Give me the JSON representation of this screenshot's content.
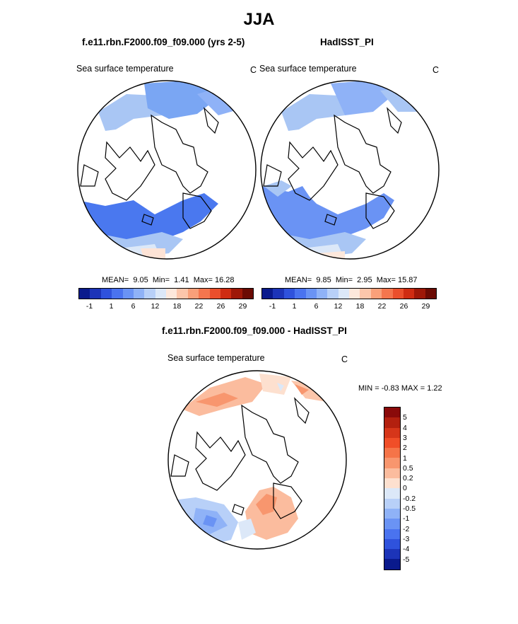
{
  "title": "JJA",
  "left_panel": {
    "header": "f.e11.rbn.F2000.f09_f09.000 (yrs 2-5)",
    "label": "Sea surface temperature",
    "units": "C",
    "stats": {
      "mean_label": "MEAN=",
      "mean": "9.05",
      "min_label": "Min=",
      "min": "1.41",
      "max_label": "Max=",
      "max": "16.28"
    }
  },
  "right_panel": {
    "header": "HadISST_PI",
    "label": "Sea surface temperature",
    "units": "C",
    "stats": {
      "mean_label": "MEAN=",
      "mean": "9.85",
      "min_label": "Min=",
      "min": "2.95",
      "max_label": "Max=",
      "max": "15.87"
    }
  },
  "diff_panel": {
    "header": "f.e11.rbn.F2000.f09_f09.000 - HadISST_PI",
    "label": "Sea surface temperature",
    "units": "C",
    "minmax": "MIN =  -0.83 MAX =  1.22"
  },
  "abs_colorbar": {
    "tick_labels": [
      "-1",
      "1",
      "6",
      "12",
      "18",
      "22",
      "26",
      "29"
    ],
    "colors": [
      "#0a1a8c",
      "#1c34b8",
      "#2f52dc",
      "#4a73ef",
      "#6a93f4",
      "#8fb2f7",
      "#b8d0f8",
      "#dce8f8",
      "#fde8dc",
      "#fcc6ab",
      "#f9a07a",
      "#f4764e",
      "#ea4f2c",
      "#cf2c12",
      "#9e1808",
      "#6b0b04"
    ]
  },
  "diff_colorbar": {
    "tick_labels": [
      "5",
      "4",
      "3",
      "2",
      "1",
      "0.5",
      "0.2",
      "0",
      "-0.2",
      "-0.5",
      "-1",
      "-2",
      "-3",
      "-4",
      "-5"
    ],
    "colors": [
      "#8a0a0a",
      "#b3200f",
      "#d6361a",
      "#f04e28",
      "#f57448",
      "#f8966e",
      "#fbbc9e",
      "#fde0cf",
      "#dce8f8",
      "#b8d0f8",
      "#8fb2f7",
      "#6a93f4",
      "#4a73ef",
      "#2f52dc",
      "#1c34b8",
      "#0a1a8c"
    ]
  }
}
